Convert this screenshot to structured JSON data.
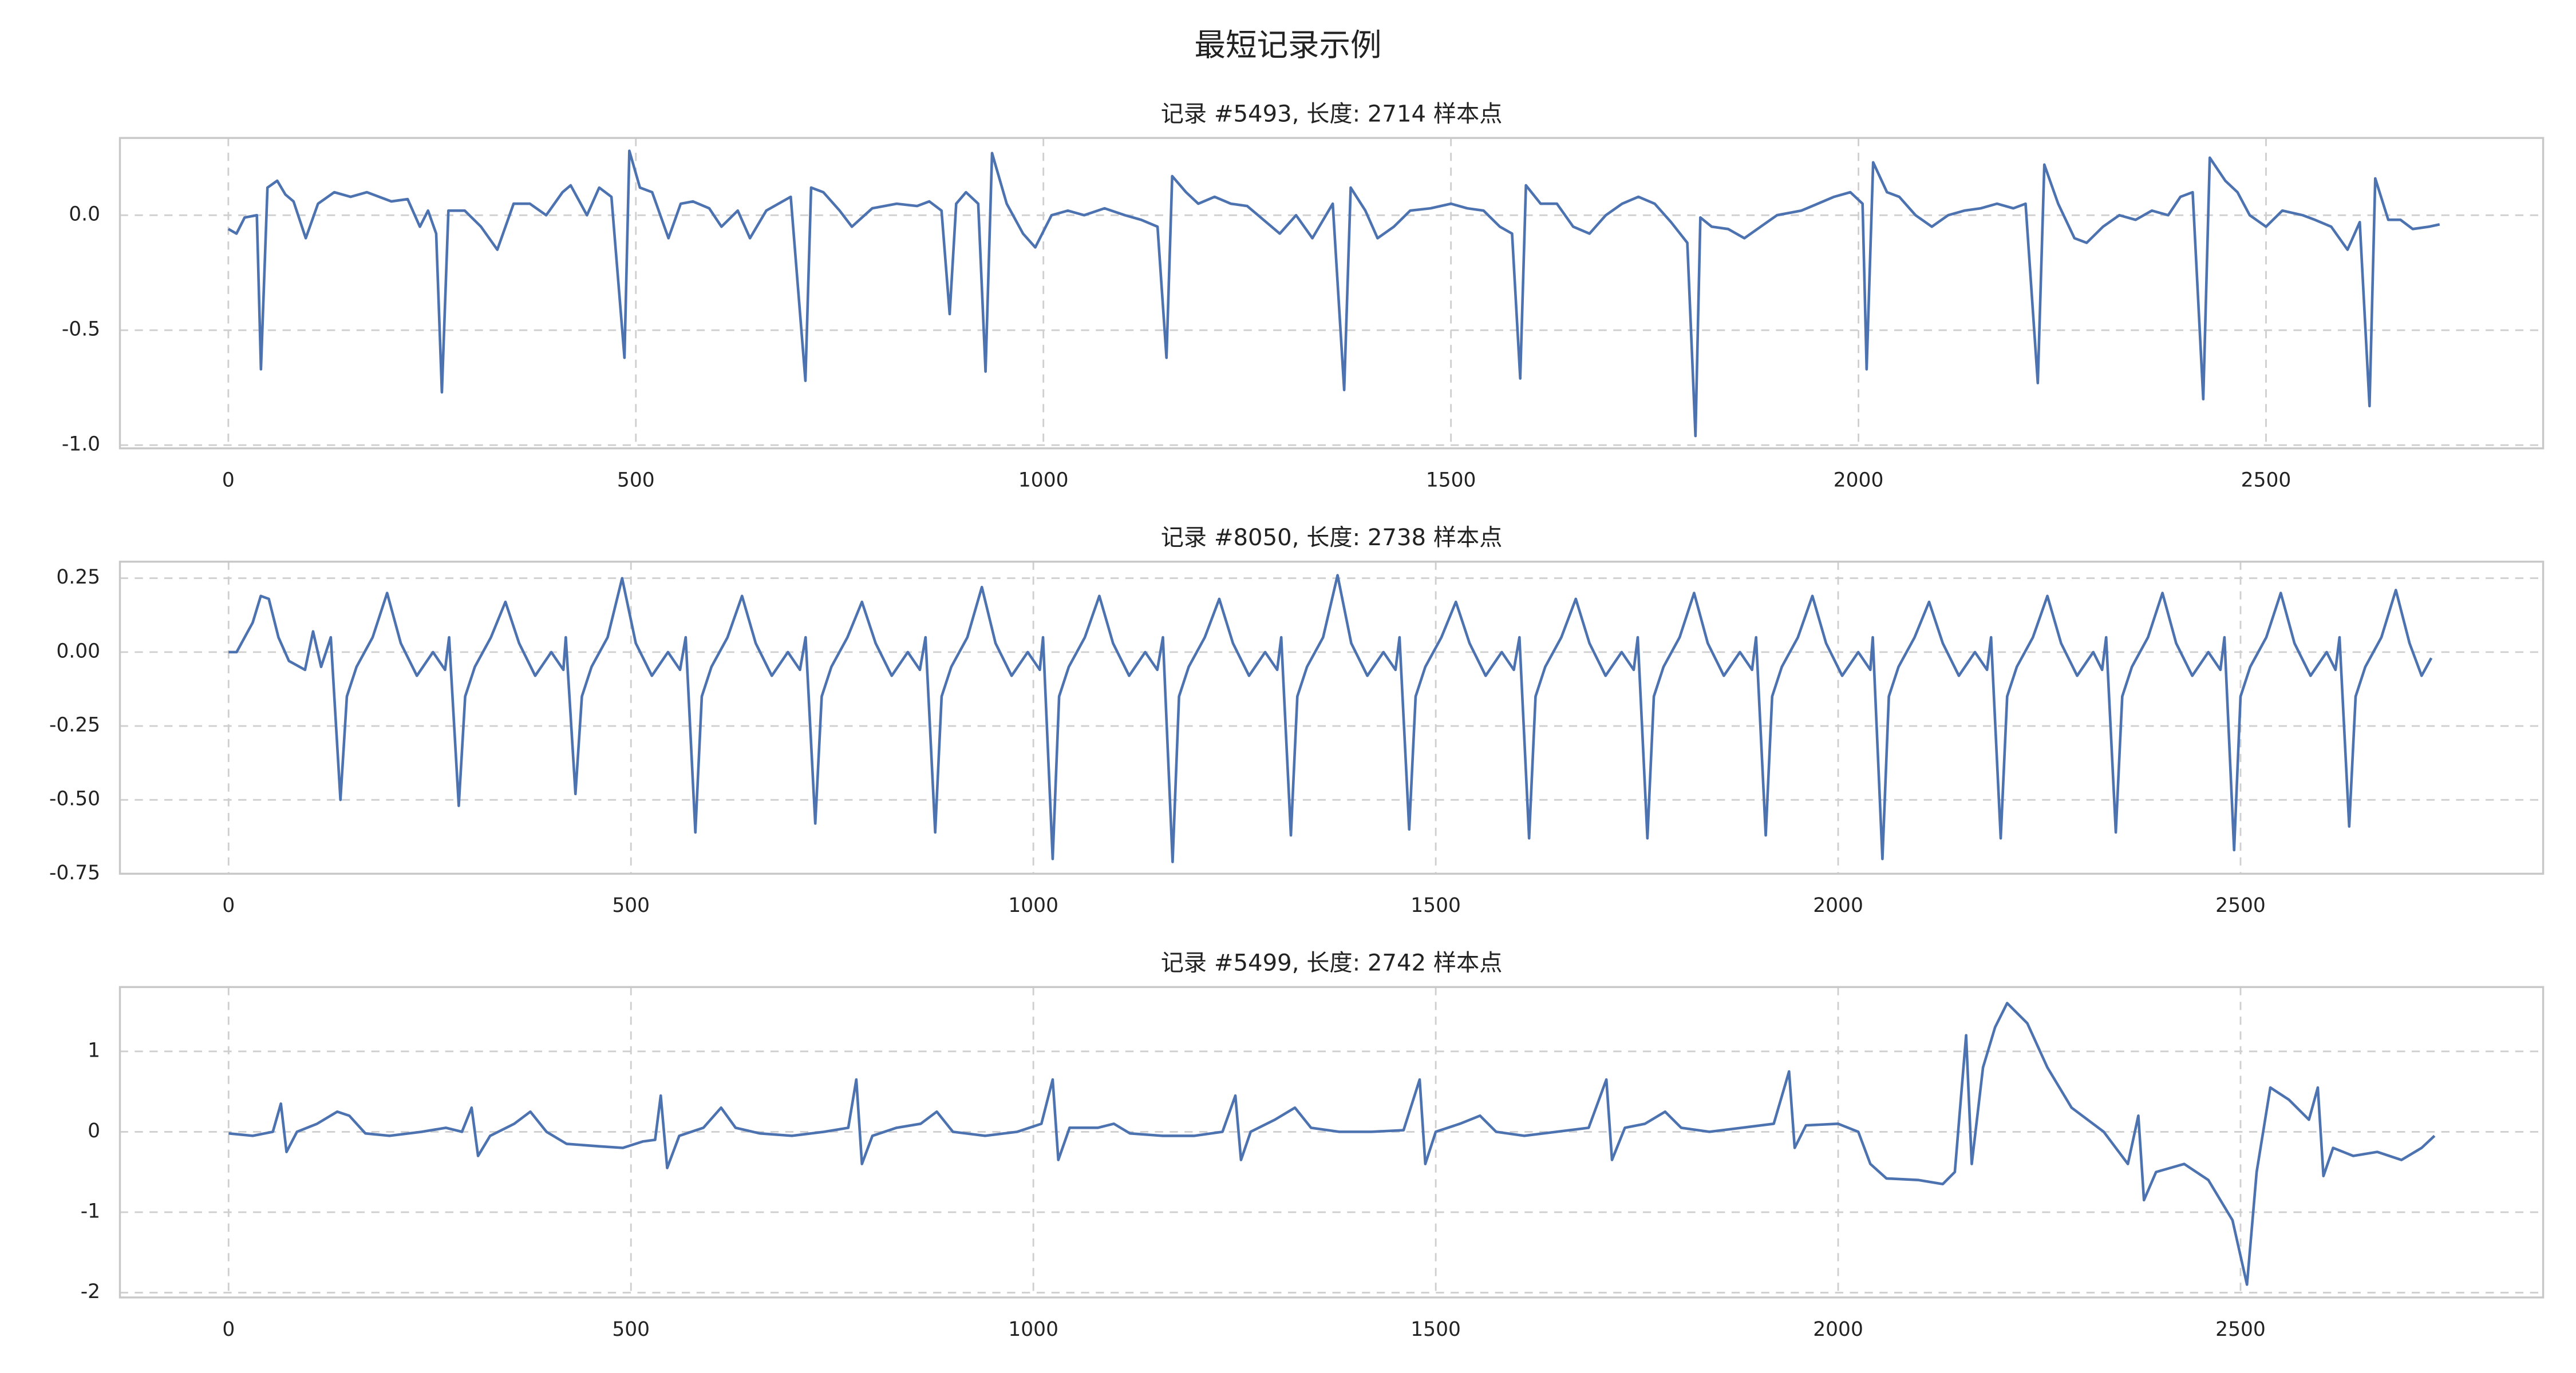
{
  "title": "最短记录示例",
  "chart_data": [
    {
      "type": "line",
      "title": "记录 #5493, 长度: 2714 样本点",
      "color": "#4c72b0",
      "grid": true,
      "xlim": [
        -133,
        2840
      ],
      "ylim": [
        -1.014,
        0.336
      ],
      "xticks": [
        0,
        500,
        1000,
        1500,
        2000,
        2500
      ],
      "yticks": [
        {
          "value": -1,
          "label": "-1.0"
        },
        -0.5,
        {
          "value": 0,
          "label": "0.0"
        }
      ],
      "x": [
        0,
        10,
        20,
        35,
        40,
        48,
        60,
        70,
        80,
        95,
        110,
        130,
        150,
        170,
        200,
        220,
        235,
        245,
        255,
        262,
        270,
        290,
        310,
        330,
        350,
        370,
        390,
        410,
        420,
        440,
        455,
        470,
        486,
        492,
        505,
        520,
        540,
        555,
        570,
        590,
        605,
        625,
        640,
        660,
        690,
        708,
        715,
        730,
        750,
        765,
        790,
        820,
        845,
        860,
        875,
        885,
        893,
        905,
        920,
        929,
        937,
        955,
        975,
        990,
        1010,
        1030,
        1050,
        1075,
        1100,
        1120,
        1140,
        1151,
        1158,
        1175,
        1190,
        1210,
        1230,
        1250,
        1270,
        1290,
        1310,
        1330,
        1355,
        1369,
        1377,
        1395,
        1410,
        1430,
        1450,
        1475,
        1500,
        1520,
        1540,
        1560,
        1575,
        1585,
        1592,
        1610,
        1630,
        1650,
        1670,
        1690,
        1710,
        1730,
        1750,
        1770,
        1790,
        1800,
        1806,
        1820,
        1840,
        1860,
        1880,
        1900,
        1930,
        1950,
        1970,
        1990,
        2005,
        2010,
        2018,
        2035,
        2050,
        2070,
        2090,
        2110,
        2130,
        2150,
        2170,
        2190,
        2205,
        2220,
        2228,
        2245,
        2265,
        2280,
        2300,
        2320,
        2340,
        2360,
        2380,
        2395,
        2410,
        2423,
        2431,
        2450,
        2465,
        2480,
        2500,
        2520,
        2545,
        2560,
        2580,
        2600,
        2615,
        2627,
        2634,
        2650,
        2665,
        2680,
        2700,
        2713
      ],
      "values": [
        -0.06,
        -0.08,
        -0.01,
        0.0,
        -0.67,
        0.12,
        0.15,
        0.09,
        0.06,
        -0.1,
        0.05,
        0.1,
        0.08,
        0.1,
        0.06,
        0.07,
        -0.05,
        0.02,
        -0.08,
        -0.77,
        0.02,
        0.02,
        -0.05,
        -0.15,
        0.05,
        0.05,
        0.0,
        0.1,
        0.13,
        0.0,
        0.12,
        0.08,
        -0.62,
        0.28,
        0.12,
        0.1,
        -0.1,
        0.05,
        0.06,
        0.03,
        -0.05,
        0.02,
        -0.1,
        0.02,
        0.08,
        -0.72,
        0.12,
        0.1,
        0.02,
        -0.05,
        0.03,
        0.05,
        0.04,
        0.06,
        0.02,
        -0.43,
        0.05,
        0.1,
        0.05,
        -0.68,
        0.27,
        0.05,
        -0.08,
        -0.14,
        0.0,
        0.02,
        0.0,
        0.03,
        0.0,
        -0.02,
        -0.05,
        -0.62,
        0.17,
        0.1,
        0.05,
        0.08,
        0.05,
        0.04,
        -0.02,
        -0.08,
        0.0,
        -0.1,
        0.05,
        -0.76,
        0.12,
        0.02,
        -0.1,
        -0.05,
        0.02,
        0.03,
        0.05,
        0.03,
        0.02,
        -0.05,
        -0.08,
        -0.71,
        0.13,
        0.05,
        0.05,
        -0.05,
        -0.08,
        0.0,
        0.05,
        0.08,
        0.05,
        -0.03,
        -0.12,
        -0.96,
        -0.01,
        -0.05,
        -0.06,
        -0.1,
        -0.05,
        0.0,
        0.02,
        0.05,
        0.08,
        0.1,
        0.05,
        -0.67,
        0.23,
        0.1,
        0.08,
        0.0,
        -0.05,
        0.0,
        0.02,
        0.03,
        0.05,
        0.03,
        0.05,
        -0.73,
        0.22,
        0.05,
        -0.1,
        -0.12,
        -0.05,
        0.0,
        -0.02,
        0.02,
        0.0,
        0.08,
        0.1,
        -0.8,
        0.25,
        0.15,
        0.1,
        0.0,
        -0.05,
        0.02,
        0.0,
        -0.02,
        -0.05,
        -0.15,
        -0.03,
        -0.83,
        0.16,
        -0.02,
        -0.02,
        -0.06,
        -0.05,
        -0.04
      ]
    },
    {
      "type": "line",
      "title": "记录 #8050, 长度: 2738 样本点",
      "color": "#4c72b0",
      "grid": true,
      "xlim": [
        -135,
        2876
      ],
      "ylim": [
        -0.75,
        0.306
      ],
      "xticks": [
        0,
        500,
        1000,
        1500,
        2000,
        2500
      ],
      "yticks": [
        {
          "value": -0.75,
          "label": "-0.75"
        },
        {
          "value": -0.5,
          "label": "-0.50"
        },
        {
          "value": -0.25,
          "label": "-0.25"
        },
        {
          "value": 0,
          "label": "0.00"
        },
        0.25
      ],
      "x": [
        0,
        10,
        30,
        40,
        50,
        62,
        75,
        95,
        105,
        115,
        127,
        139,
        147,
        159,
        179,
        197,
        214,
        234,
        254,
        269,
        274,
        286,
        294,
        306,
        326,
        344,
        361,
        381,
        401,
        416,
        419,
        431,
        439,
        451,
        471,
        489,
        506,
        526,
        546,
        561,
        568,
        580,
        588,
        600,
        620,
        638,
        655,
        675,
        695,
        710,
        717,
        729,
        737,
        749,
        769,
        787,
        804,
        824,
        844,
        859,
        866,
        878,
        886,
        898,
        918,
        936,
        953,
        973,
        993,
        1008,
        1012,
        1024,
        1032,
        1044,
        1064,
        1082,
        1099,
        1119,
        1139,
        1154,
        1161,
        1173,
        1181,
        1193,
        1213,
        1231,
        1248,
        1268,
        1288,
        1303,
        1308,
        1320,
        1328,
        1340,
        1360,
        1378,
        1395,
        1415,
        1435,
        1450,
        1455,
        1467,
        1475,
        1487,
        1507,
        1525,
        1542,
        1562,
        1582,
        1597,
        1604,
        1616,
        1624,
        1636,
        1656,
        1674,
        1691,
        1711,
        1731,
        1746,
        1751,
        1763,
        1771,
        1783,
        1803,
        1821,
        1838,
        1858,
        1878,
        1893,
        1898,
        1910,
        1918,
        1930,
        1950,
        1968,
        1985,
        2005,
        2025,
        2040,
        2043,
        2055,
        2063,
        2075,
        2095,
        2113,
        2130,
        2150,
        2170,
        2185,
        2190,
        2202,
        2210,
        2222,
        2242,
        2260,
        2277,
        2297,
        2317,
        2328,
        2333,
        2345,
        2353,
        2365,
        2385,
        2403,
        2420,
        2440,
        2460,
        2475,
        2480,
        2492,
        2500,
        2512,
        2532,
        2550,
        2567,
        2587,
        2607,
        2618,
        2623,
        2635,
        2643,
        2655,
        2675,
        2693,
        2710,
        2725,
        2737
      ],
      "values": [
        0.0,
        0.0,
        0.1,
        0.19,
        0.18,
        0.05,
        -0.03,
        -0.06,
        0.07,
        -0.05,
        0.05,
        -0.5,
        -0.15,
        -0.05,
        0.05,
        0.2,
        0.03,
        -0.08,
        0.0,
        -0.06,
        0.05,
        -0.52,
        -0.15,
        -0.05,
        0.05,
        0.17,
        0.03,
        -0.08,
        0.0,
        -0.06,
        0.05,
        -0.48,
        -0.15,
        -0.05,
        0.05,
        0.25,
        0.03,
        -0.08,
        0.0,
        -0.06,
        0.05,
        -0.61,
        -0.15,
        -0.05,
        0.05,
        0.19,
        0.03,
        -0.08,
        0.0,
        -0.06,
        0.05,
        -0.58,
        -0.15,
        -0.05,
        0.05,
        0.17,
        0.03,
        -0.08,
        0.0,
        -0.06,
        0.05,
        -0.61,
        -0.15,
        -0.05,
        0.05,
        0.22,
        0.03,
        -0.08,
        0.0,
        -0.06,
        0.05,
        -0.7,
        -0.15,
        -0.05,
        0.05,
        0.19,
        0.03,
        -0.08,
        0.0,
        -0.06,
        0.05,
        -0.71,
        -0.15,
        -0.05,
        0.05,
        0.18,
        0.03,
        -0.08,
        0.0,
        -0.06,
        0.05,
        -0.62,
        -0.15,
        -0.05,
        0.05,
        0.26,
        0.03,
        -0.08,
        0.0,
        -0.06,
        0.05,
        -0.6,
        -0.15,
        -0.05,
        0.05,
        0.17,
        0.03,
        -0.08,
        0.0,
        -0.06,
        0.05,
        -0.63,
        -0.15,
        -0.05,
        0.05,
        0.18,
        0.03,
        -0.08,
        0.0,
        -0.06,
        0.05,
        -0.63,
        -0.15,
        -0.05,
        0.05,
        0.2,
        0.03,
        -0.08,
        0.0,
        -0.06,
        0.05,
        -0.62,
        -0.15,
        -0.05,
        0.05,
        0.19,
        0.03,
        -0.08,
        0.0,
        -0.06,
        0.05,
        -0.7,
        -0.15,
        -0.05,
        0.05,
        0.17,
        0.03,
        -0.08,
        0.0,
        -0.06,
        0.05,
        -0.63,
        -0.15,
        -0.05,
        0.05,
        0.19,
        0.03,
        -0.08,
        0.0,
        -0.06,
        0.05,
        -0.61,
        -0.15,
        -0.05,
        0.05,
        0.2,
        0.03,
        -0.08,
        0.0,
        -0.06,
        0.05,
        -0.67,
        -0.15,
        -0.05,
        0.05,
        0.2,
        0.03,
        -0.08,
        0.0,
        -0.06,
        0.05,
        -0.59,
        -0.15,
        -0.05,
        0.05,
        0.21,
        0.03,
        -0.08,
        -0.02
      ]
    },
    {
      "type": "line",
      "title": "记录 #5499, 长度: 2742 样本点",
      "color": "#4c72b0",
      "grid": true,
      "xlim": [
        -135,
        2876
      ],
      "ylim": [
        -2.06,
        1.8
      ],
      "xticks": [
        0,
        500,
        1000,
        1500,
        2000,
        2500
      ],
      "yticks": [
        -2,
        -1,
        0,
        1
      ],
      "x": [
        0,
        30,
        55,
        65,
        72,
        85,
        110,
        135,
        150,
        170,
        200,
        240,
        270,
        290,
        302,
        310,
        325,
        355,
        375,
        395,
        420,
        460,
        490,
        515,
        530,
        537,
        545,
        560,
        590,
        612,
        630,
        660,
        700,
        740,
        770,
        780,
        787,
        800,
        830,
        860,
        880,
        900,
        940,
        980,
        1010,
        1024,
        1031,
        1045,
        1080,
        1100,
        1120,
        1160,
        1200,
        1235,
        1251,
        1258,
        1270,
        1300,
        1325,
        1345,
        1380,
        1420,
        1460,
        1480,
        1487,
        1500,
        1530,
        1555,
        1575,
        1610,
        1650,
        1690,
        1712,
        1719,
        1735,
        1760,
        1785,
        1805,
        1840,
        1880,
        1920,
        1939,
        1946,
        1960,
        2000,
        2025,
        2040,
        2060,
        2100,
        2130,
        2145,
        2159,
        2166,
        2180,
        2195,
        2210,
        2235,
        2260,
        2290,
        2330,
        2360,
        2373,
        2380,
        2395,
        2430,
        2460,
        2490,
        2508,
        2520,
        2537,
        2560,
        2585,
        2596,
        2603,
        2615,
        2640,
        2670,
        2700,
        2725,
        2741
      ],
      "values": [
        -0.02,
        -0.05,
        0.0,
        0.35,
        -0.25,
        0.0,
        0.1,
        0.25,
        0.2,
        -0.02,
        -0.05,
        0.0,
        0.05,
        0.0,
        0.3,
        -0.3,
        -0.05,
        0.1,
        0.25,
        0.0,
        -0.15,
        -0.18,
        -0.2,
        -0.12,
        -0.1,
        0.45,
        -0.45,
        -0.05,
        0.05,
        0.3,
        0.05,
        -0.02,
        -0.05,
        0.0,
        0.05,
        0.65,
        -0.4,
        -0.05,
        0.05,
        0.1,
        0.25,
        0.0,
        -0.05,
        0.0,
        0.1,
        0.65,
        -0.35,
        0.05,
        0.05,
        0.1,
        -0.02,
        -0.05,
        -0.05,
        0.0,
        0.45,
        -0.35,
        0.0,
        0.15,
        0.3,
        0.05,
        0.0,
        0.0,
        0.02,
        0.65,
        -0.4,
        0.0,
        0.1,
        0.2,
        0.0,
        -0.05,
        0.0,
        0.05,
        0.65,
        -0.35,
        0.05,
        0.1,
        0.25,
        0.05,
        0.0,
        0.05,
        0.1,
        0.75,
        -0.2,
        0.08,
        0.1,
        0.0,
        -0.4,
        -0.58,
        -0.6,
        -0.65,
        -0.5,
        1.2,
        -0.4,
        0.8,
        1.3,
        1.6,
        1.35,
        0.8,
        0.3,
        0.0,
        -0.4,
        0.2,
        -0.85,
        -0.5,
        -0.4,
        -0.6,
        -1.1,
        -1.9,
        -0.5,
        0.55,
        0.4,
        0.15,
        0.55,
        -0.55,
        -0.2,
        -0.3,
        -0.25,
        -0.35,
        -0.2,
        -0.05
      ]
    }
  ]
}
